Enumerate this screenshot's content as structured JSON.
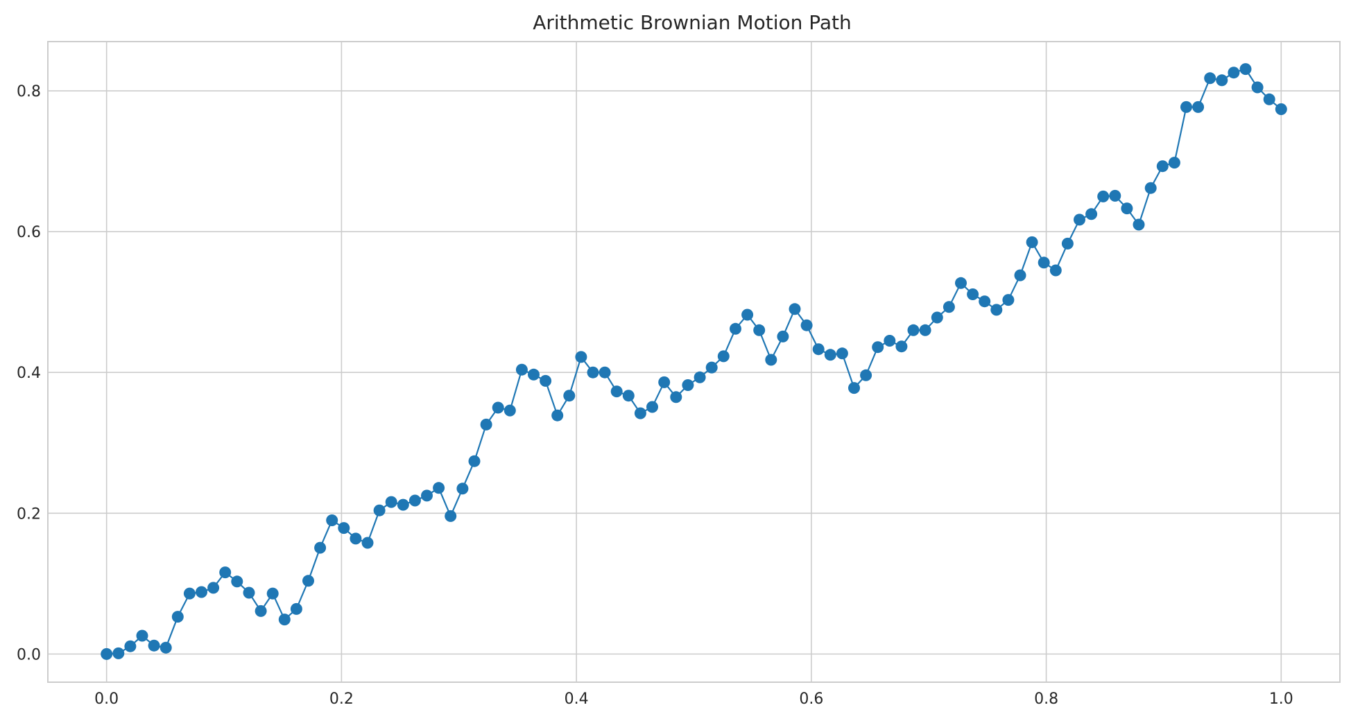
{
  "chart_data": {
    "type": "line",
    "title": "Arithmetic Brownian Motion Path",
    "xlabel": "",
    "ylabel": "",
    "xlim": [
      -0.05,
      1.05
    ],
    "ylim": [
      -0.04,
      0.87
    ],
    "xticks": [
      0.0,
      0.2,
      0.4,
      0.6,
      0.8,
      1.0
    ],
    "xtick_labels": [
      "0.0",
      "0.2",
      "0.4",
      "0.6",
      "0.8",
      "1.0"
    ],
    "yticks": [
      0.0,
      0.2,
      0.4,
      0.6,
      0.8
    ],
    "ytick_labels": [
      "0.0",
      "0.2",
      "0.4",
      "0.6",
      "0.8"
    ],
    "grid": true,
    "marker": "circle",
    "series": [
      {
        "color": "#1f77b4",
        "x": [
          0.0,
          0.0101,
          0.0202,
          0.0303,
          0.0404,
          0.0505,
          0.0606,
          0.0707,
          0.0808,
          0.0909,
          0.101,
          0.1111,
          0.1212,
          0.1313,
          0.1414,
          0.1515,
          0.1616,
          0.1717,
          0.1818,
          0.1919,
          0.202,
          0.2121,
          0.2222,
          0.2323,
          0.2424,
          0.2525,
          0.2626,
          0.2727,
          0.2828,
          0.2929,
          0.303,
          0.3131,
          0.3232,
          0.3333,
          0.3434,
          0.3535,
          0.3636,
          0.3737,
          0.3838,
          0.3939,
          0.404,
          0.4141,
          0.4242,
          0.4343,
          0.4444,
          0.4545,
          0.4646,
          0.4747,
          0.4848,
          0.4949,
          0.5051,
          0.5152,
          0.5253,
          0.5354,
          0.5455,
          0.5556,
          0.5657,
          0.5758,
          0.5859,
          0.596,
          0.6061,
          0.6162,
          0.6263,
          0.6364,
          0.6465,
          0.6566,
          0.6667,
          0.6768,
          0.6869,
          0.697,
          0.7071,
          0.7172,
          0.7273,
          0.7374,
          0.7475,
          0.7576,
          0.7677,
          0.7778,
          0.7879,
          0.798,
          0.8081,
          0.8182,
          0.8283,
          0.8384,
          0.8485,
          0.8586,
          0.8687,
          0.8788,
          0.8889,
          0.899,
          0.9091,
          0.9192,
          0.9293,
          0.9394,
          0.9495,
          0.9596,
          0.9697,
          0.9798,
          0.9899,
          1.0
        ],
        "y": [
          0.0,
          0.001,
          0.011,
          0.026,
          0.012,
          0.009,
          0.053,
          0.086,
          0.088,
          0.094,
          0.116,
          0.103,
          0.087,
          0.061,
          0.086,
          0.049,
          0.064,
          0.104,
          0.151,
          0.19,
          0.179,
          0.164,
          0.158,
          0.204,
          0.216,
          0.212,
          0.218,
          0.225,
          0.236,
          0.196,
          0.235,
          0.274,
          0.326,
          0.35,
          0.346,
          0.404,
          0.397,
          0.388,
          0.339,
          0.367,
          0.422,
          0.4,
          0.4,
          0.373,
          0.367,
          0.342,
          0.351,
          0.386,
          0.365,
          0.382,
          0.393,
          0.407,
          0.423,
          0.462,
          0.482,
          0.46,
          0.418,
          0.451,
          0.49,
          0.467,
          0.433,
          0.425,
          0.427,
          0.378,
          0.396,
          0.436,
          0.445,
          0.437,
          0.46,
          0.46,
          0.478,
          0.493,
          0.527,
          0.511,
          0.501,
          0.489,
          0.503,
          0.538,
          0.585,
          0.556,
          0.545,
          0.583,
          0.617,
          0.625,
          0.65,
          0.651,
          0.633,
          0.61,
          0.662,
          0.693,
          0.698,
          0.777,
          0.777,
          0.818,
          0.815,
          0.826,
          0.831,
          0.805,
          0.788,
          0.774
        ]
      }
    ]
  }
}
